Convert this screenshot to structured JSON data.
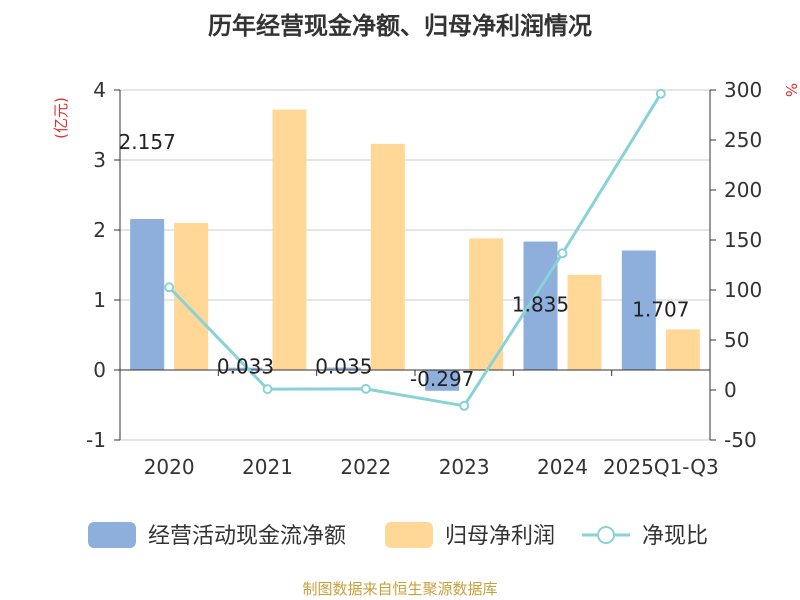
{
  "title": "历年经营现金净额、归母净利润情况",
  "source": "制图数据来自恒生聚源数据库",
  "chart_data": {
    "type": "bar",
    "categories": [
      "2020",
      "2021",
      "2022",
      "2023",
      "2024",
      "2025Q1-Q3"
    ],
    "series": [
      {
        "name": "经营活动现金流净额",
        "type": "bar",
        "axis": "left",
        "color": "#8eaedb",
        "values": [
          2.157,
          0.033,
          0.035,
          -0.297,
          1.835,
          1.707
        ],
        "labels": [
          "2.157",
          "0.033",
          "0.035",
          "-0.297",
          "1.835",
          "1.707"
        ]
      },
      {
        "name": "归母净利润",
        "type": "bar",
        "axis": "left",
        "color": "#ffd898",
        "values": [
          2.1,
          3.72,
          3.23,
          1.88,
          1.36,
          0.58
        ]
      },
      {
        "name": "净现比",
        "type": "line",
        "axis": "right",
        "color": "#88d2d8",
        "values": [
          102.7,
          0.9,
          1.1,
          -15.8,
          136.7,
          296.3
        ]
      }
    ],
    "y_left": {
      "label": "(亿元)",
      "min": -1,
      "max": 4,
      "ticks": [
        -1,
        0,
        1,
        2,
        3,
        4
      ]
    },
    "y_right": {
      "label": "%",
      "min": -50,
      "max": 300,
      "ticks": [
        -50,
        0,
        50,
        100,
        150,
        200,
        250,
        300
      ]
    },
    "legend_position": "bottom",
    "grid": true
  }
}
